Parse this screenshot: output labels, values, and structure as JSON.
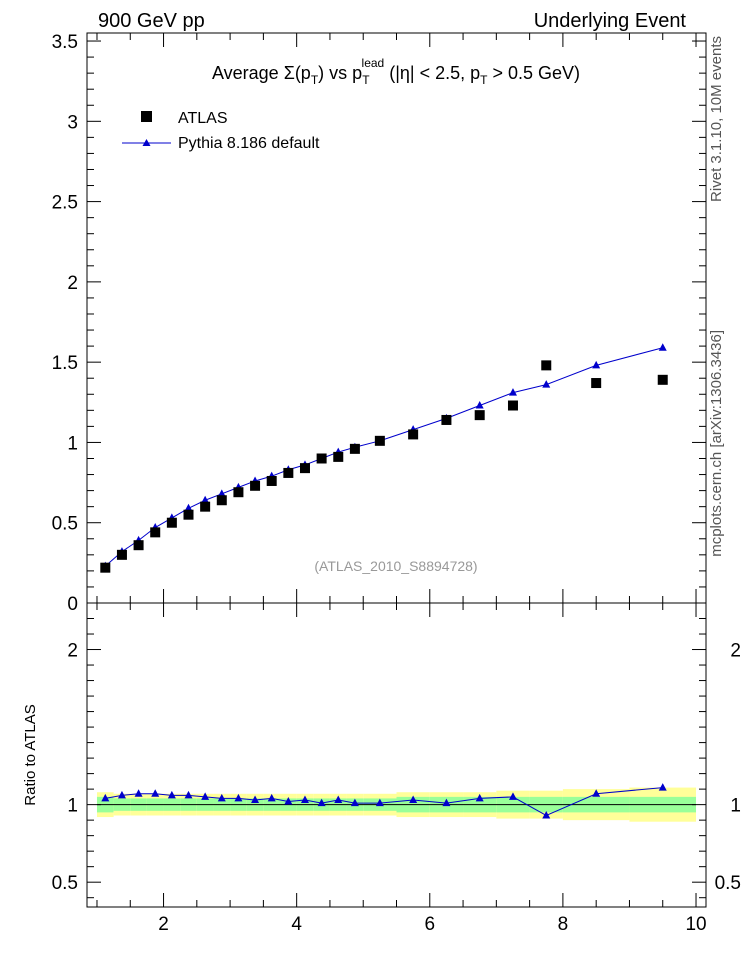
{
  "header": {
    "left": "900 GeV pp",
    "right": "Underlying Event"
  },
  "side_text": {
    "rivet": "Rivet 3.1.10,  10M events",
    "source": "mcplots.cern.ch [arXiv:1306.3436]"
  },
  "chart_data": [
    {
      "type": "scatter",
      "title_parts": {
        "lead": "Average  Σ(p",
        "sub1": "T",
        "mid": ") vs p",
        "sub2": "T",
        "sup2": "lead",
        "tail": " (|η| < 2.5, p",
        "sub3": "T",
        "end": " > 0.5 GeV)"
      },
      "watermark": "(ATLAS_2010_S8894728)",
      "xlim": [
        0.85,
        10.15
      ],
      "ylim": [
        0,
        3.55
      ],
      "y_ticks": [
        0,
        0.5,
        1,
        1.5,
        2,
        2.5,
        3,
        3.5
      ],
      "y_tick_labels": [
        "0",
        "0.5",
        "1",
        "1.5",
        "2",
        "2.5",
        "3",
        "3.5"
      ],
      "legend_position": "top-left",
      "colors": {
        "data": "#000000",
        "mc": "#0000cc"
      },
      "series": [
        {
          "name": "ATLAS",
          "marker": "square",
          "x": [
            1.125,
            1.375,
            1.625,
            1.875,
            2.125,
            2.375,
            2.625,
            2.875,
            3.125,
            3.375,
            3.625,
            3.875,
            4.125,
            4.375,
            4.625,
            4.875,
            5.25,
            5.75,
            6.25,
            6.75,
            7.25,
            7.75,
            8.5,
            9.5
          ],
          "y": [
            0.22,
            0.3,
            0.36,
            0.44,
            0.5,
            0.55,
            0.6,
            0.64,
            0.69,
            0.73,
            0.76,
            0.81,
            0.84,
            0.9,
            0.91,
            0.96,
            1.01,
            1.05,
            1.14,
            1.17,
            1.23,
            1.48,
            1.37,
            1.39
          ]
        },
        {
          "name": "Pythia 8.186 default",
          "marker": "triangle",
          "x": [
            1.125,
            1.375,
            1.625,
            1.875,
            2.125,
            2.375,
            2.625,
            2.875,
            3.125,
            3.375,
            3.625,
            3.875,
            4.125,
            4.375,
            4.625,
            4.875,
            5.25,
            5.75,
            6.25,
            6.75,
            7.25,
            7.75,
            8.5,
            9.5
          ],
          "y": [
            0.23,
            0.32,
            0.39,
            0.47,
            0.53,
            0.59,
            0.64,
            0.68,
            0.72,
            0.76,
            0.79,
            0.83,
            0.86,
            0.9,
            0.94,
            0.97,
            1.01,
            1.08,
            1.15,
            1.23,
            1.31,
            1.36,
            1.48,
            1.59
          ]
        }
      ]
    },
    {
      "type": "line",
      "ylabel": "Ratio to ATLAS",
      "xlim": [
        0.85,
        10.15
      ],
      "ylim": [
        0.34,
        2.3
      ],
      "y_ticks": [
        0.5,
        1,
        2
      ],
      "y_tick_labels": [
        "0.5",
        "1",
        "2"
      ],
      "x_ticks": [
        2,
        4,
        6,
        8,
        10
      ],
      "x_tick_labels": [
        "2",
        "4",
        "6",
        "8",
        "10"
      ],
      "colors": {
        "band_inner": "#99ff99",
        "band_outer": "#ffff99",
        "ratio": "#0000cc"
      },
      "bands": {
        "x_edges": [
          1.0,
          1.25,
          1.5,
          1.75,
          2.0,
          2.25,
          2.5,
          2.75,
          3.0,
          3.25,
          3.5,
          3.75,
          4.0,
          4.25,
          4.5,
          4.75,
          5.0,
          5.5,
          6.0,
          6.5,
          7.0,
          7.5,
          8.0,
          9.0,
          10.0
        ],
        "inner_half_width": [
          0.05,
          0.04,
          0.04,
          0.04,
          0.04,
          0.04,
          0.04,
          0.04,
          0.04,
          0.04,
          0.04,
          0.04,
          0.04,
          0.04,
          0.04,
          0.04,
          0.04,
          0.05,
          0.05,
          0.05,
          0.05,
          0.05,
          0.05,
          0.05
        ],
        "outer_half_width": [
          0.08,
          0.07,
          0.07,
          0.07,
          0.07,
          0.07,
          0.07,
          0.07,
          0.07,
          0.07,
          0.07,
          0.07,
          0.07,
          0.07,
          0.07,
          0.07,
          0.07,
          0.08,
          0.08,
          0.08,
          0.09,
          0.09,
          0.1,
          0.11
        ]
      },
      "series": [
        {
          "name": "Pythia 8.186 default / ATLAS",
          "x": [
            1.125,
            1.375,
            1.625,
            1.875,
            2.125,
            2.375,
            2.625,
            2.875,
            3.125,
            3.375,
            3.625,
            3.875,
            4.125,
            4.375,
            4.625,
            4.875,
            5.25,
            5.75,
            6.25,
            6.75,
            7.25,
            7.75,
            8.5,
            9.5
          ],
          "y": [
            1.04,
            1.06,
            1.07,
            1.07,
            1.06,
            1.06,
            1.05,
            1.04,
            1.04,
            1.03,
            1.04,
            1.02,
            1.03,
            1.01,
            1.03,
            1.01,
            1.01,
            1.03,
            1.01,
            1.04,
            1.05,
            0.93,
            1.07,
            1.11
          ]
        }
      ]
    }
  ]
}
